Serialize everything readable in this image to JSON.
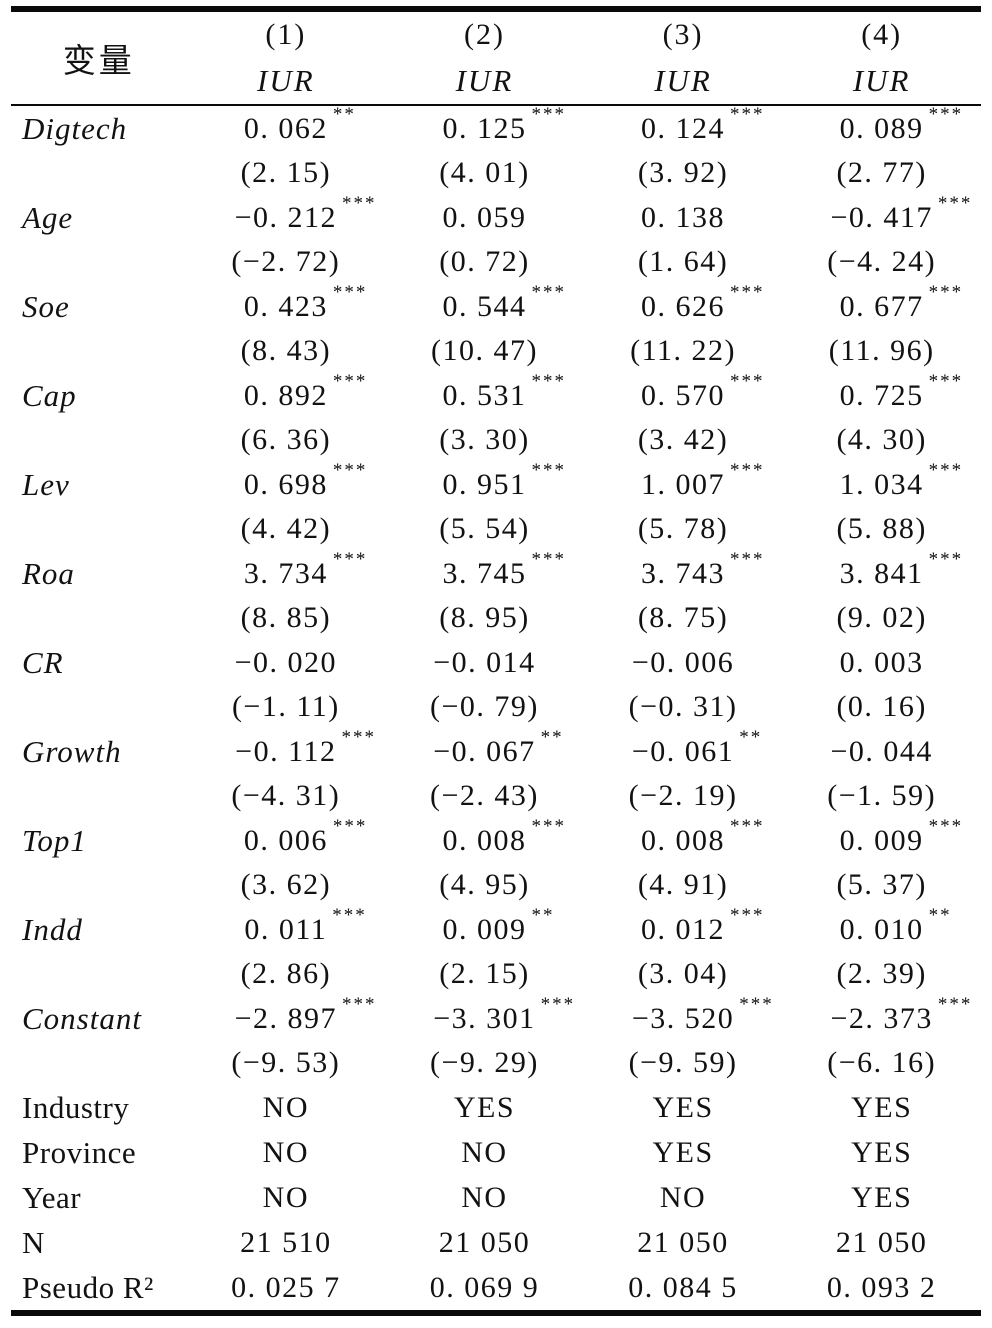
{
  "table": {
    "header": {
      "var_label": "变量",
      "columns": [
        {
          "num": "(1)",
          "dep": "IUR"
        },
        {
          "num": "(2)",
          "dep": "IUR"
        },
        {
          "num": "(3)",
          "dep": "IUR"
        },
        {
          "num": "(4)",
          "dep": "IUR"
        }
      ]
    },
    "coef_rows": [
      {
        "name": "Digtech",
        "cells": [
          {
            "coef": "0. 062",
            "stars": "**",
            "t": "(2. 15)"
          },
          {
            "coef": "0. 125",
            "stars": "***",
            "t": "(4. 01)"
          },
          {
            "coef": "0. 124",
            "stars": "***",
            "t": "(3. 92)"
          },
          {
            "coef": "0. 089",
            "stars": "***",
            "t": "(2. 77)"
          }
        ]
      },
      {
        "name": "Age",
        "cells": [
          {
            "coef": "−0. 212",
            "stars": "***",
            "t": "(−2. 72)"
          },
          {
            "coef": "0. 059",
            "stars": "",
            "t": "(0. 72)"
          },
          {
            "coef": "0. 138",
            "stars": "",
            "t": "(1. 64)"
          },
          {
            "coef": "−0. 417",
            "stars": "***",
            "t": "(−4. 24)"
          }
        ]
      },
      {
        "name": "Soe",
        "cells": [
          {
            "coef": "0. 423",
            "stars": "***",
            "t": "(8. 43)"
          },
          {
            "coef": "0. 544",
            "stars": "***",
            "t": "(10. 47)"
          },
          {
            "coef": "0. 626",
            "stars": "***",
            "t": "(11. 22)"
          },
          {
            "coef": "0. 677",
            "stars": "***",
            "t": "(11. 96)"
          }
        ]
      },
      {
        "name": "Cap",
        "cells": [
          {
            "coef": "0. 892",
            "stars": "***",
            "t": "(6. 36)"
          },
          {
            "coef": "0. 531",
            "stars": "***",
            "t": "(3. 30)"
          },
          {
            "coef": "0. 570",
            "stars": "***",
            "t": "(3. 42)"
          },
          {
            "coef": "0. 725",
            "stars": "***",
            "t": "(4. 30)"
          }
        ]
      },
      {
        "name": "Lev",
        "cells": [
          {
            "coef": "0. 698",
            "stars": "***",
            "t": "(4. 42)"
          },
          {
            "coef": "0. 951",
            "stars": "***",
            "t": "(5. 54)"
          },
          {
            "coef": "1. 007",
            "stars": "***",
            "t": "(5. 78)"
          },
          {
            "coef": "1. 034",
            "stars": "***",
            "t": "(5. 88)"
          }
        ]
      },
      {
        "name": "Roa",
        "cells": [
          {
            "coef": "3. 734",
            "stars": "***",
            "t": "(8. 85)"
          },
          {
            "coef": "3. 745",
            "stars": "***",
            "t": "(8. 95)"
          },
          {
            "coef": "3. 743",
            "stars": "***",
            "t": "(8. 75)"
          },
          {
            "coef": "3. 841",
            "stars": "***",
            "t": "(9. 02)"
          }
        ]
      },
      {
        "name": "CR",
        "cells": [
          {
            "coef": "−0. 020",
            "stars": "",
            "t": "(−1. 11)"
          },
          {
            "coef": "−0. 014",
            "stars": "",
            "t": "(−0. 79)"
          },
          {
            "coef": "−0. 006",
            "stars": "",
            "t": "(−0. 31)"
          },
          {
            "coef": "0. 003",
            "stars": "",
            "t": "(0. 16)"
          }
        ]
      },
      {
        "name": "Growth",
        "cells": [
          {
            "coef": "−0. 112",
            "stars": "***",
            "t": "(−4. 31)"
          },
          {
            "coef": "−0. 067",
            "stars": "**",
            "t": "(−2. 43)"
          },
          {
            "coef": "−0. 061",
            "stars": "**",
            "t": "(−2. 19)"
          },
          {
            "coef": "−0. 044",
            "stars": "",
            "t": "(−1. 59)"
          }
        ]
      },
      {
        "name": "Top1",
        "cells": [
          {
            "coef": "0. 006",
            "stars": "***",
            "t": "(3. 62)"
          },
          {
            "coef": "0. 008",
            "stars": "***",
            "t": "(4. 95)"
          },
          {
            "coef": "0. 008",
            "stars": "***",
            "t": "(4. 91)"
          },
          {
            "coef": "0. 009",
            "stars": "***",
            "t": "(5. 37)"
          }
        ]
      },
      {
        "name": "Indd",
        "cells": [
          {
            "coef": "0. 011",
            "stars": "***",
            "t": "(2. 86)"
          },
          {
            "coef": "0. 009",
            "stars": "**",
            "t": "(2. 15)"
          },
          {
            "coef": "0. 012",
            "stars": "***",
            "t": "(3. 04)"
          },
          {
            "coef": "0. 010",
            "stars": "**",
            "t": "(2. 39)"
          }
        ]
      },
      {
        "name": "Constant",
        "cells": [
          {
            "coef": "−2. 897",
            "stars": "***",
            "t": "(−9. 53)"
          },
          {
            "coef": "−3. 301",
            "stars": "***",
            "t": "(−9. 29)"
          },
          {
            "coef": "−3. 520",
            "stars": "***",
            "t": "(−9. 59)"
          },
          {
            "coef": "−2. 373",
            "stars": "***",
            "t": "(−6. 16)"
          }
        ]
      }
    ],
    "info_rows": [
      {
        "name": "Industry",
        "values": [
          "NO",
          "YES",
          "YES",
          "YES"
        ]
      },
      {
        "name": "Province",
        "values": [
          "NO",
          "NO",
          "YES",
          "YES"
        ]
      },
      {
        "name": "Year",
        "values": [
          "NO",
          "NO",
          "NO",
          "YES"
        ]
      },
      {
        "name": "N",
        "values": [
          "21 510",
          "21 050",
          "21 050",
          "21 050"
        ]
      },
      {
        "name": "Pseudo R²",
        "values": [
          "0. 025 7",
          "0. 069 9",
          "0. 084 5",
          "0. 093 2"
        ]
      }
    ]
  }
}
